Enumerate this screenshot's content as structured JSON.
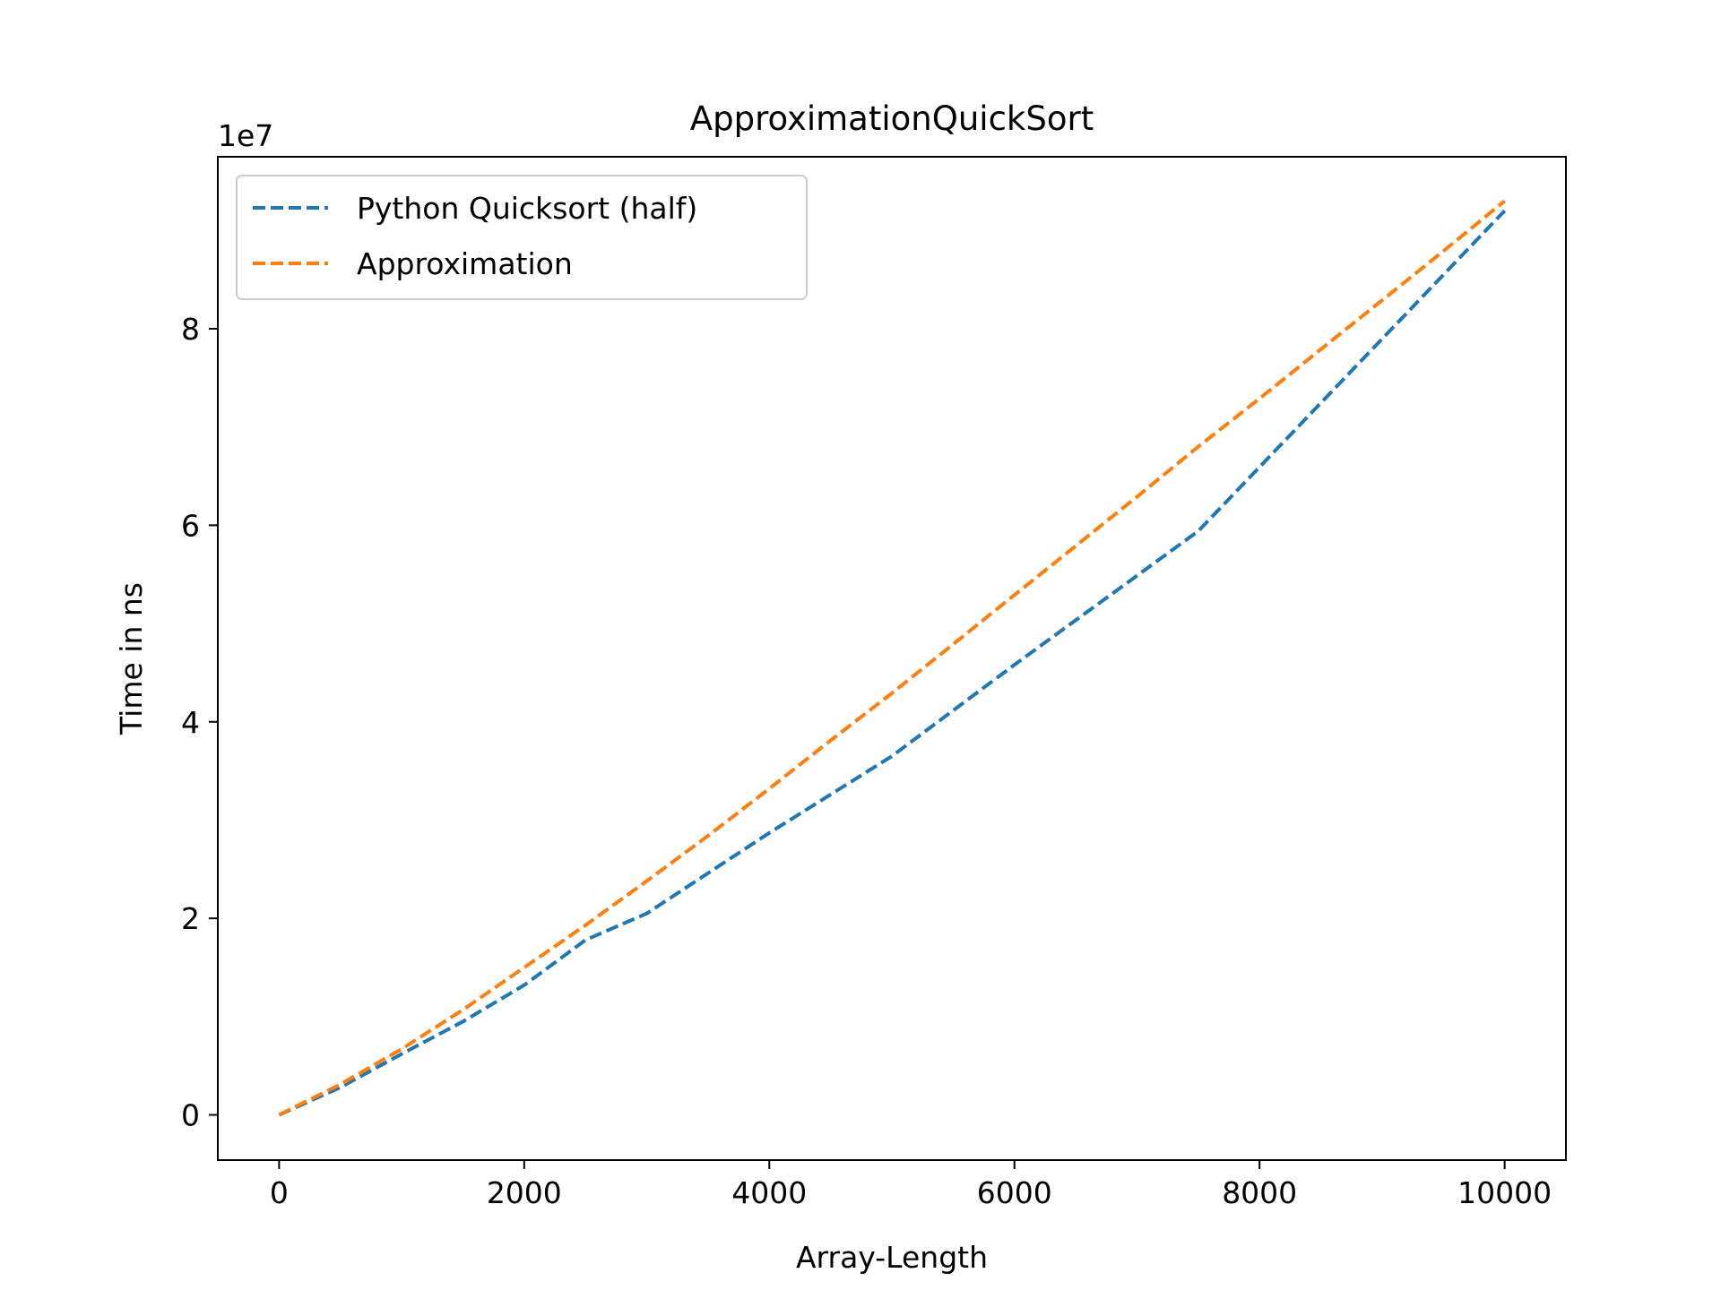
{
  "chart_data": {
    "type": "line",
    "title": "ApproximationQuickSort",
    "xlabel": "Array-Length",
    "ylabel": "Time in ns",
    "y_offset_label": "1e7",
    "y_scale_factor": 10000000,
    "xlim": [
      -500,
      10500
    ],
    "ylim": [
      -4600000,
      97500000
    ],
    "x_ticks": [
      0,
      2000,
      4000,
      6000,
      8000,
      10000
    ],
    "x_tick_labels": [
      "0",
      "2000",
      "4000",
      "6000",
      "8000",
      "10000"
    ],
    "y_ticks": [
      0,
      20000000,
      40000000,
      60000000,
      80000000
    ],
    "y_tick_labels": [
      "0",
      "2",
      "4",
      "6",
      "8"
    ],
    "grid": false,
    "legend_position": "top-left",
    "series": [
      {
        "name": "Python Quicksort (half)",
        "color": "#1f77b4",
        "line_style": "dashed",
        "x": [
          0,
          500,
          1000,
          1500,
          2000,
          2500,
          3000,
          4000,
          5000,
          6000,
          7500,
          10000
        ],
        "y": [
          0,
          2800000,
          6200000,
          9500000,
          13200000,
          17800000,
          20500000,
          28700000,
          36500000,
          45800000,
          59400000,
          92000000
        ]
      },
      {
        "name": "Approximation",
        "color": "#ff7f0e",
        "line_style": "dashed",
        "x": [
          0,
          500,
          1000,
          1500,
          2000,
          2500,
          3000,
          3500,
          4000,
          4500,
          5000,
          5500,
          6000,
          6500,
          7000,
          7500,
          8000,
          8500,
          9000,
          9500,
          10000
        ],
        "y": [
          0,
          3100000,
          6700000,
          10700000,
          15000000,
          19300000,
          23800000,
          28400000,
          33200000,
          38100000,
          42900000,
          47900000,
          52900000,
          57900000,
          62900000,
          68000000,
          72900000,
          77900000,
          82900000,
          87900000,
          93000000
        ]
      }
    ]
  }
}
